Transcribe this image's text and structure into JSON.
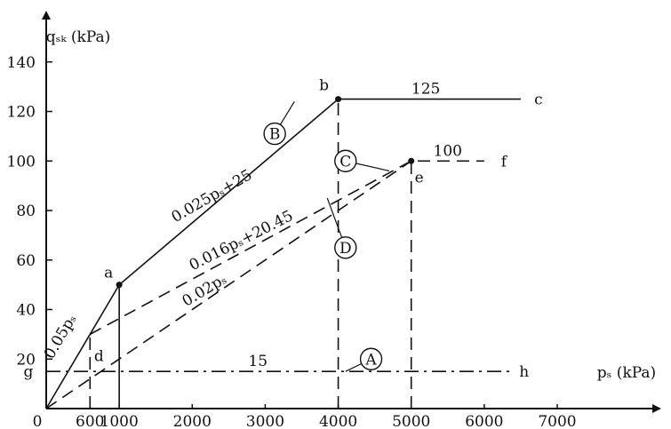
{
  "chart_data": {
    "type": "line",
    "xlabel": "pₛ (kPa)",
    "ylabel": "qₛₖ (kPa)",
    "xlim": [
      0,
      8400
    ],
    "ylim": [
      0,
      160
    ],
    "x_ticks": [
      600,
      1000,
      2000,
      3000,
      4000,
      5000,
      6000,
      7000
    ],
    "y_ticks": [
      20,
      40,
      60,
      80,
      100,
      120,
      140
    ],
    "origin_label": "0",
    "series": [
      {
        "id": "A",
        "style": "dashdot",
        "x": [
          0,
          6400
        ],
        "y": [
          15,
          15
        ]
      },
      {
        "id": "B",
        "style": "solid",
        "x": [
          0,
          1000,
          4000,
          6500
        ],
        "y": [
          0,
          50,
          125,
          125
        ]
      },
      {
        "id": "C",
        "style": "dashed",
        "x": [
          600,
          5000,
          6000
        ],
        "y": [
          30,
          100,
          100
        ]
      },
      {
        "id": "D",
        "style": "dashed",
        "x": [
          0,
          5000
        ],
        "y": [
          0,
          100
        ]
      }
    ],
    "guides": [
      {
        "style": "dashed",
        "x": [
          4000,
          4000
        ],
        "y": [
          0,
          125
        ]
      },
      {
        "style": "dashed",
        "x": [
          5000,
          5000
        ],
        "y": [
          0,
          100
        ]
      },
      {
        "style": "dashed",
        "x": [
          600,
          600
        ],
        "y": [
          0,
          30
        ]
      },
      {
        "style": "solid",
        "x": [
          1000,
          1000
        ],
        "y": [
          0,
          50
        ]
      }
    ],
    "markers": [
      {
        "x": 1000,
        "y": 50
      },
      {
        "x": 4000,
        "y": 125
      },
      {
        "x": 5000,
        "y": 100
      }
    ],
    "point_labels": [
      {
        "text": "a",
        "x": 1000,
        "y": 50
      },
      {
        "text": "b",
        "x": 4000,
        "y": 125
      },
      {
        "text": "c",
        "x": 6500,
        "y": 125
      },
      {
        "text": "d",
        "x": 600,
        "y": 30
      },
      {
        "text": "e",
        "x": 5000,
        "y": 100
      },
      {
        "text": "f",
        "x": 6000,
        "y": 100
      },
      {
        "text": "g",
        "x": 0,
        "y": 15
      },
      {
        "text": "h",
        "x": 6400,
        "y": 15
      }
    ],
    "line_labels": [
      {
        "text": "0.025pₛ+25",
        "anchor_x": 2300,
        "anchor_y": 82
      },
      {
        "text": "0.016pₛ+20.45",
        "anchor_x": 2700,
        "anchor_y": 64
      },
      {
        "text": "0.02pₛ",
        "anchor_x": 2200,
        "anchor_y": 44
      },
      {
        "text": "0.05pₛ",
        "anchor_x": 250,
        "anchor_y": 26
      },
      {
        "text": "125",
        "anchor_x": 5200,
        "anchor_y": 125
      },
      {
        "text": "100",
        "anchor_x": 5500,
        "anchor_y": 100
      },
      {
        "text": "15",
        "anchor_x": 2900,
        "anchor_y": 15
      }
    ],
    "curve_markers": [
      {
        "text": "A",
        "x": 4450,
        "y": 20
      },
      {
        "text": "B",
        "x": 3130,
        "y": 111
      },
      {
        "text": "C",
        "x": 4100,
        "y": 100
      },
      {
        "text": "D",
        "x": 4100,
        "y": 65
      }
    ]
  }
}
